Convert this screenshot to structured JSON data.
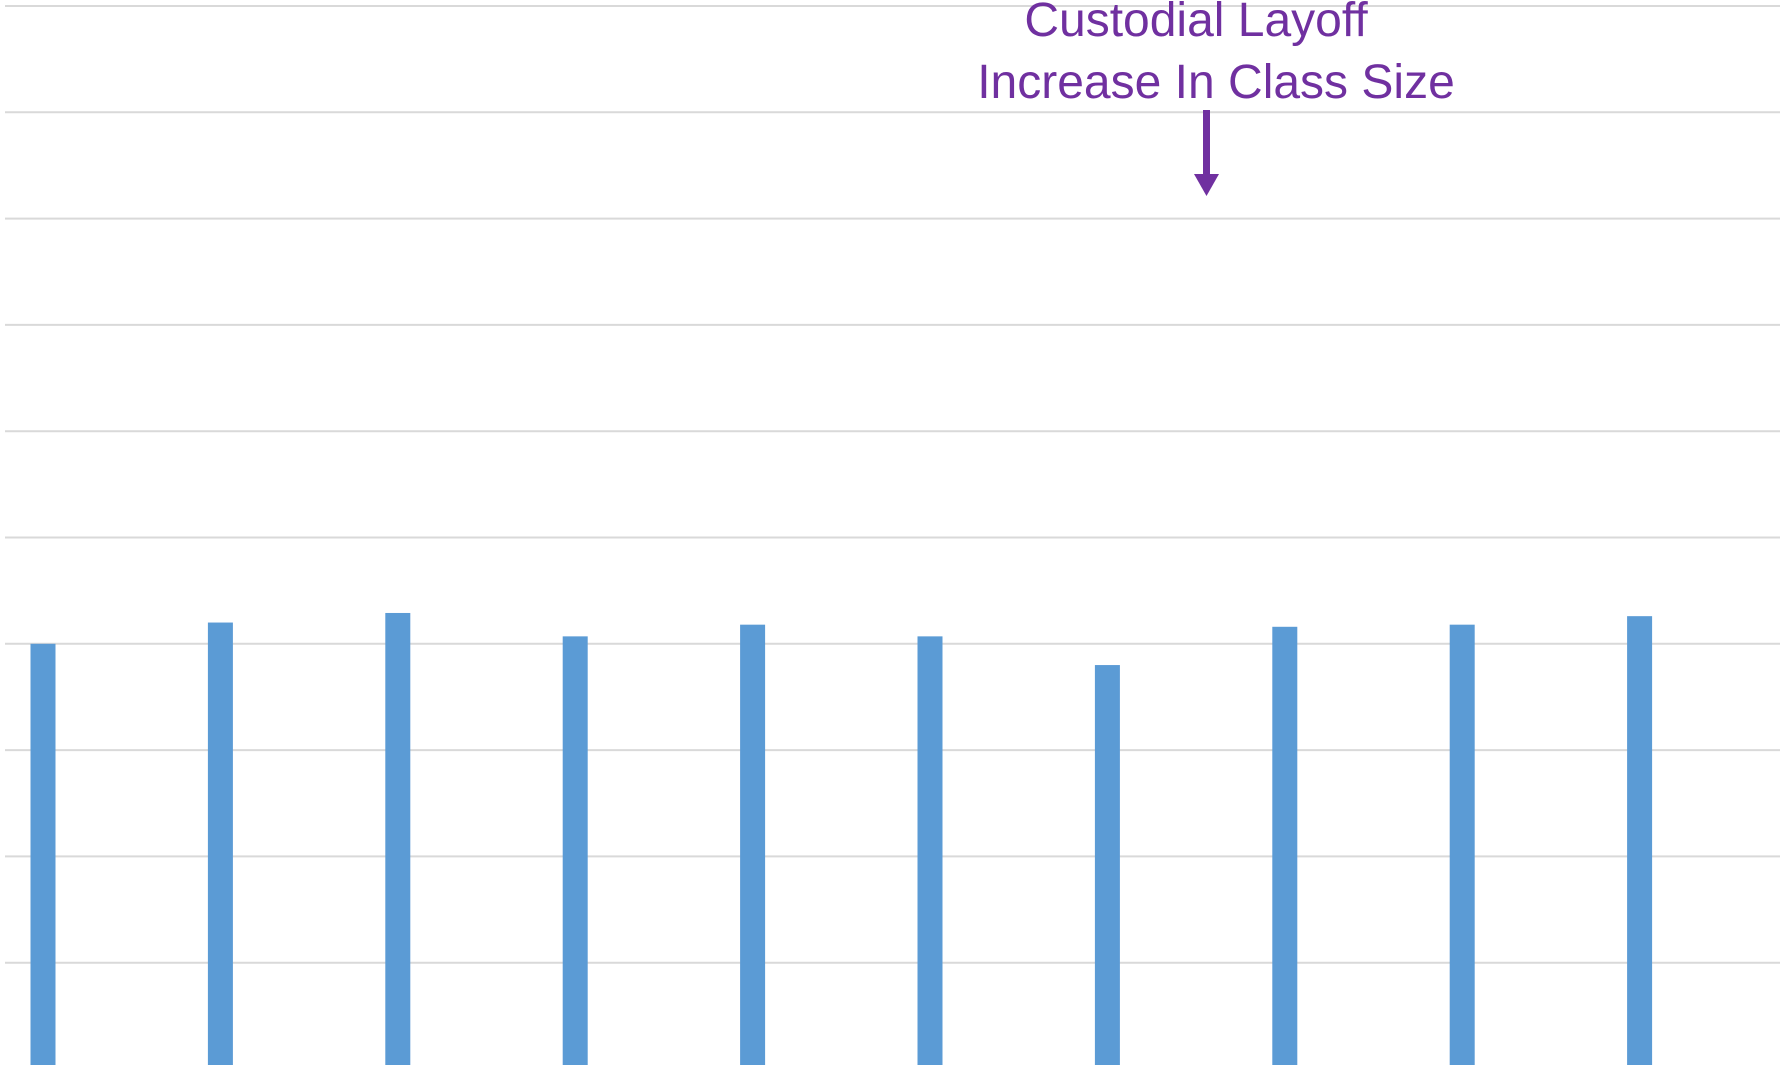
{
  "chart_data": {
    "type": "bar",
    "values": [
      40.0,
      42.0,
      42.9,
      40.7,
      41.8,
      40.7,
      38.0,
      41.6,
      41.8,
      42.6
    ],
    "ylim": [
      0,
      100
    ],
    "grid": true,
    "bar_color": "#5b9bd5",
    "gridline_color": "#d9d9d9",
    "annotation": {
      "lines": [
        "Custodial Layoff",
        "Increase In Class Size"
      ],
      "color": "#7030a0",
      "target_index": 7
    }
  }
}
